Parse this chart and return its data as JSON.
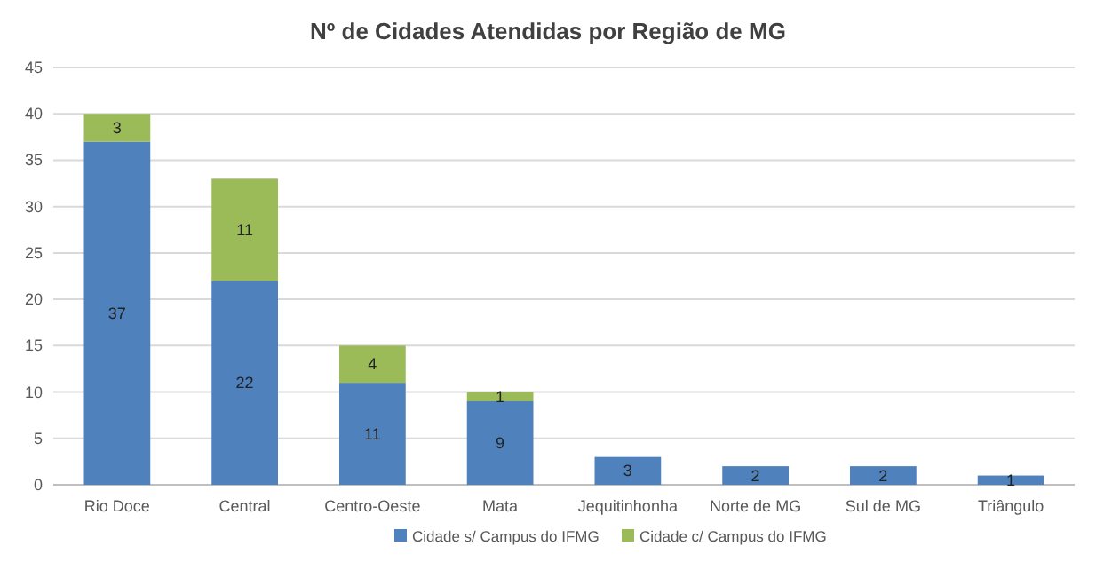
{
  "chart_data": {
    "type": "bar",
    "title": "Nº de Cidades Atendidas por Região de MG",
    "categories": [
      "Rio Doce",
      "Central",
      "Centro-Oeste",
      "Mata",
      "Jequitinhonha",
      "Norte de MG",
      "Sul de MG",
      "Triângulo"
    ],
    "stacked": true,
    "series": [
      {
        "name": "Cidade s/ Campus do IFMG",
        "color": "#4f81bd",
        "values": [
          37,
          22,
          11,
          9,
          3,
          2,
          2,
          1
        ]
      },
      {
        "name": "Cidade c/ Campus do IFMG",
        "color": "#9bbb59",
        "values": [
          3,
          11,
          4,
          1,
          null,
          null,
          null,
          null
        ]
      }
    ],
    "ylim": [
      0,
      45
    ],
    "yticks": [
      0,
      5,
      10,
      15,
      20,
      25,
      30,
      35,
      40,
      45
    ],
    "grid": "y",
    "legend": "bottom",
    "data_labels": true
  }
}
